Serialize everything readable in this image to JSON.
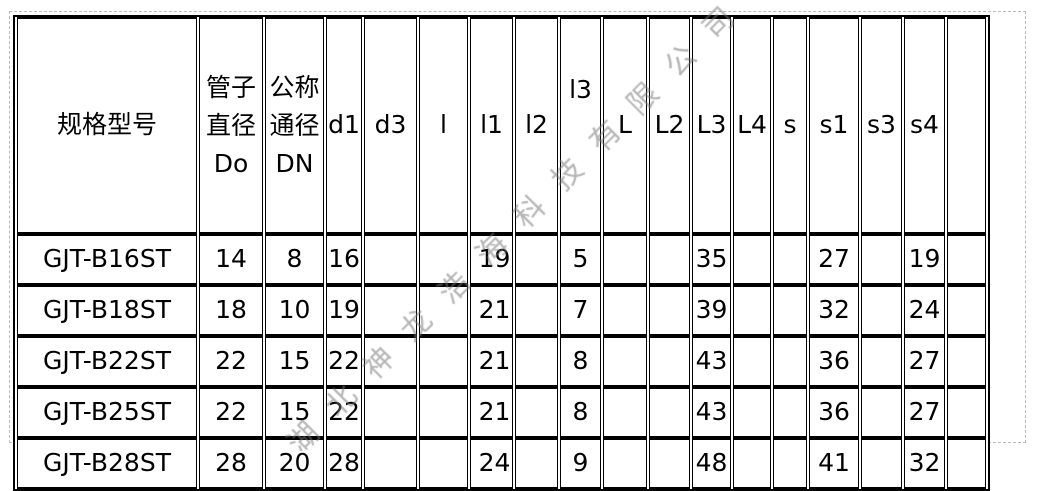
{
  "table": {
    "headers": [
      "规格型号",
      "管子直径Do",
      "公称通径DN",
      "d1",
      "d3",
      "l",
      "l1",
      "l2",
      "l3",
      "L",
      "L2",
      "L3",
      "L4",
      "s",
      "s1",
      "s3",
      "s4",
      ""
    ],
    "header_lines": {
      "do": [
        "管子",
        "直径",
        "Do"
      ],
      "dn": [
        "公称",
        "通径",
        "DN"
      ]
    },
    "rows": [
      [
        "GJT-B16ST",
        "14",
        "8",
        "16",
        "",
        "",
        "19",
        "",
        "5",
        "",
        "",
        "35",
        "",
        "",
        "27",
        "",
        "19",
        ""
      ],
      [
        "GJT-B18ST",
        "18",
        "10",
        "19",
        "",
        "",
        "21",
        "",
        "7",
        "",
        "",
        "39",
        "",
        "",
        "32",
        "",
        "24",
        ""
      ],
      [
        "GJT-B22ST",
        "22",
        "15",
        "22",
        "",
        "",
        "21",
        "",
        "8",
        "",
        "",
        "43",
        "",
        "",
        "36",
        "",
        "27",
        ""
      ],
      [
        "GJT-B25ST",
        "22",
        "15",
        "22",
        "",
        "",
        "21",
        "",
        "8",
        "",
        "",
        "43",
        "",
        "",
        "36",
        "",
        "27",
        ""
      ],
      [
        "GJT-B28ST",
        "28",
        "20",
        "28",
        "",
        "",
        "24",
        "",
        "9",
        "",
        "",
        "48",
        "",
        "",
        "41",
        "",
        "32",
        ""
      ]
    ]
  },
  "watermark": "湖北神龙浩海科技有限公司"
}
